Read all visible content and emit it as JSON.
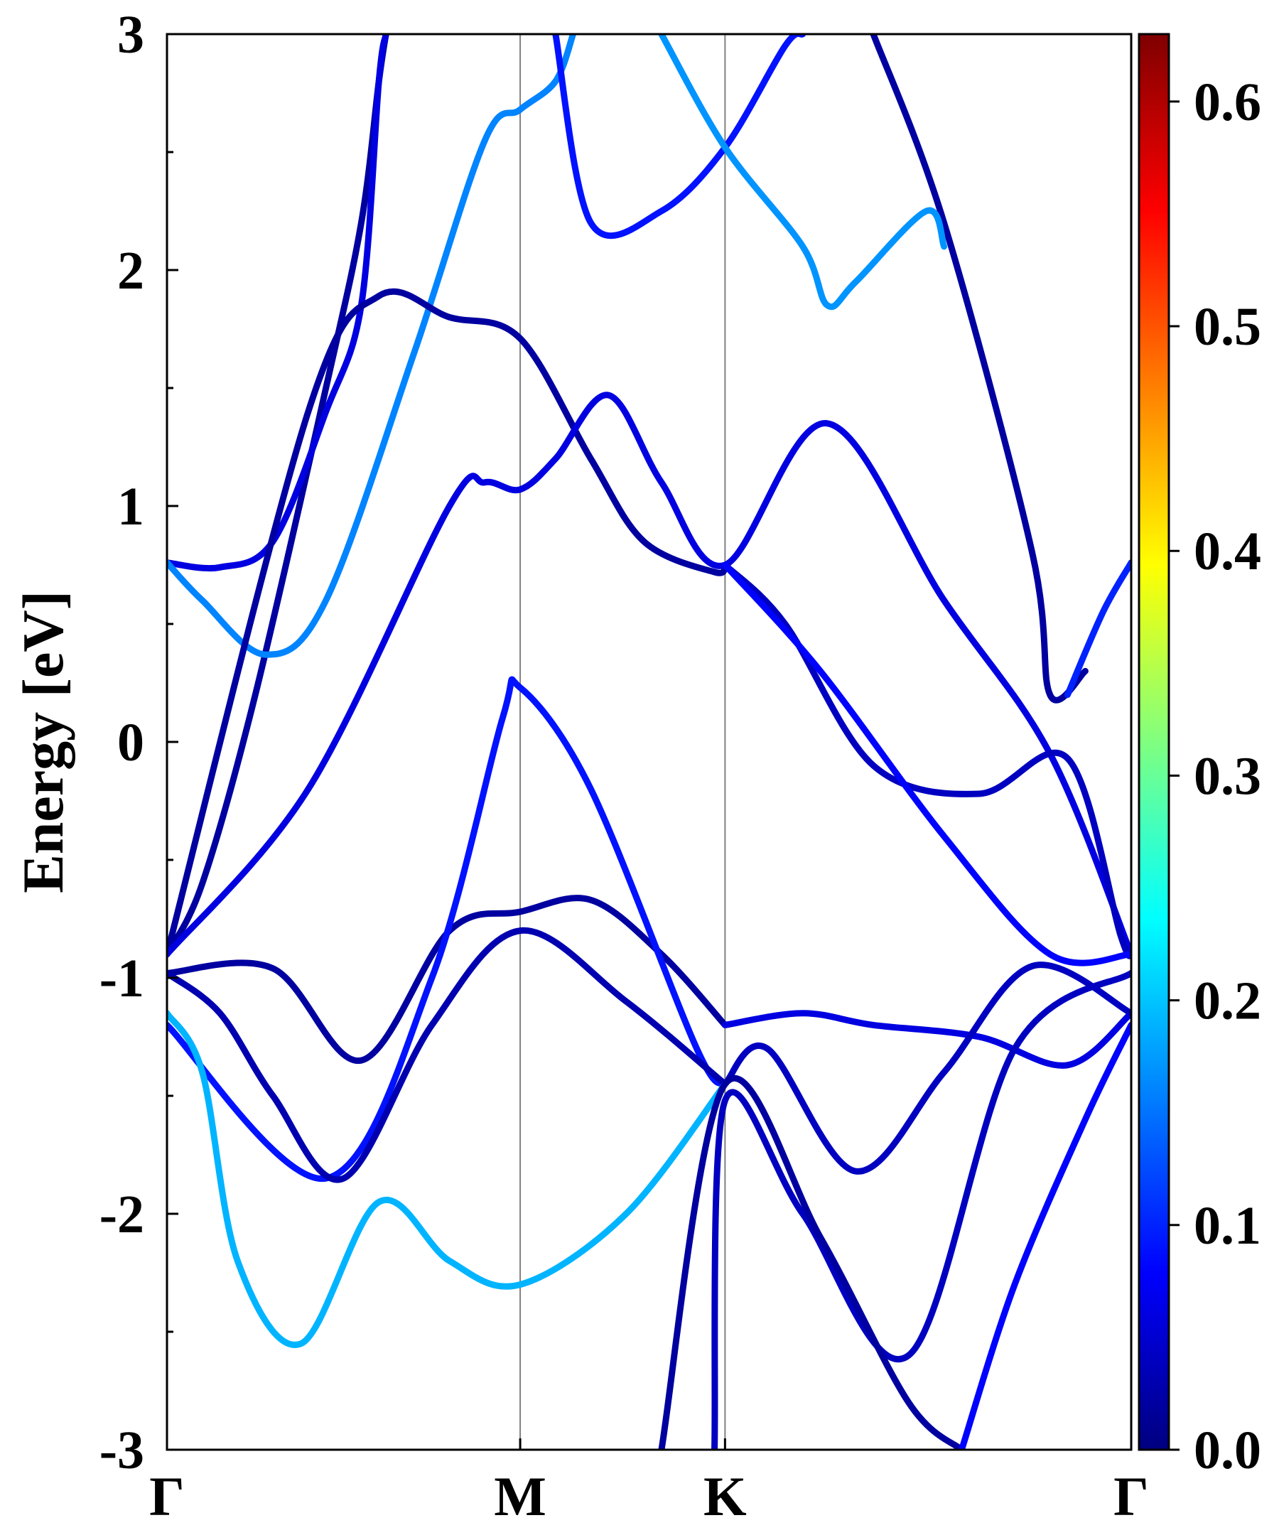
{
  "chart_data": {
    "type": "line",
    "title": "",
    "xlabel": "",
    "ylabel": "Energy [eV]",
    "ylim": [
      -3,
      3
    ],
    "y_ticks": [
      "-3",
      "-2",
      "-1",
      "0",
      "1",
      "2",
      "3"
    ],
    "y_tick_values": [
      -3,
      -2,
      -1,
      0,
      1,
      2,
      3
    ],
    "k_path_ticks": [
      "Γ",
      "M",
      "K",
      "Γ"
    ],
    "k_path_positions": [
      0,
      1,
      1.58,
      2.73
    ],
    "colorbar": {
      "colormap": "jet",
      "range": [
        0,
        0.63
      ],
      "ticks": [
        "0.0",
        "0.1",
        "0.2",
        "0.3",
        "0.4",
        "0.5",
        "0.6"
      ],
      "tick_values": [
        0.0,
        0.1,
        0.2,
        0.3,
        0.4,
        0.5,
        0.6
      ]
    },
    "series": [
      {
        "weight": 0.02,
        "x": [
          0,
          0.1,
          0.25,
          0.45,
          0.55,
          0.6,
          0.62
        ],
        "y": [
          -0.9,
          -0.6,
          0.2,
          1.5,
          2.2,
          2.8,
          3.0
        ]
      },
      {
        "weight": 0.06,
        "x": [
          0,
          0.15,
          0.3,
          0.45,
          0.55,
          0.6,
          0.62
        ],
        "y": [
          0.76,
          0.74,
          0.85,
          1.4,
          1.85,
          2.8,
          3.0
        ]
      },
      {
        "weight": 0.16,
        "x": [
          0,
          0.1,
          0.28,
          0.45,
          0.7,
          0.9,
          1.0,
          1.1,
          1.15
        ],
        "y": [
          0.76,
          0.6,
          0.37,
          0.6,
          1.65,
          2.55,
          2.68,
          2.8,
          3.0
        ]
      },
      {
        "weight": 0.02,
        "x": [
          0,
          0.4,
          0.6,
          0.8,
          1.0,
          1.2,
          1.35,
          1.55,
          1.58
        ],
        "y": [
          -0.9,
          1.4,
          1.89,
          1.8,
          1.71,
          1.2,
          0.85,
          0.72,
          0.75
        ]
      },
      {
        "weight": 0.06,
        "x": [
          0,
          0.4,
          0.8,
          0.9,
          1.0,
          1.1,
          1.25,
          1.4,
          1.58,
          1.87,
          2.2,
          2.5,
          2.73
        ],
        "y": [
          -0.9,
          -0.2,
          1.0,
          1.1,
          1.07,
          1.2,
          1.47,
          1.1,
          0.75,
          1.35,
          0.6,
          -0.05,
          -0.9
        ]
      },
      {
        "weight": 0.04,
        "x": [
          1.58,
          1.75,
          2.0,
          2.3,
          2.55,
          2.7,
          2.73
        ],
        "y": [
          0.75,
          0.5,
          -0.1,
          -0.22,
          -0.07,
          -0.82,
          -0.9
        ]
      },
      {
        "weight": 0.08,
        "x": [
          1.58,
          1.85,
          2.2,
          2.5,
          2.73
        ],
        "y": [
          0.75,
          0.3,
          -0.4,
          -0.9,
          -0.9
        ]
      },
      {
        "weight": 0.02,
        "x": [
          0,
          0.3,
          0.55,
          0.8,
          1.0,
          1.2,
          1.4,
          1.58
        ],
        "y": [
          -0.98,
          -0.96,
          -1.35,
          -0.8,
          -0.72,
          -0.67,
          -0.9,
          -1.2
        ]
      },
      {
        "weight": 0.09,
        "x": [
          0,
          0.45,
          0.75,
          0.95,
          1.0,
          1.2,
          1.5,
          1.58
        ],
        "y": [
          -1.2,
          -1.85,
          -1.0,
          0.1,
          0.23,
          -0.2,
          -1.3,
          -1.45
        ]
      },
      {
        "weight": 0.03,
        "x": [
          0,
          0.15,
          0.3,
          0.5,
          0.75,
          1.0,
          1.3,
          1.58
        ],
        "y": [
          -0.98,
          -1.15,
          -1.5,
          -1.85,
          -1.2,
          -0.8,
          -1.1,
          -1.45
        ]
      },
      {
        "weight": 0.19,
        "x": [
          0,
          0.1,
          0.2,
          0.38,
          0.6,
          0.8,
          1.0,
          1.3,
          1.58
        ],
        "y": [
          -1.15,
          -1.4,
          -2.2,
          -2.55,
          -1.95,
          -2.2,
          -2.3,
          -2.0,
          -1.45
        ]
      },
      {
        "weight": 0.06,
        "x": [
          1.58,
          1.8,
          2.0,
          2.3,
          2.55,
          2.73
        ],
        "y": [
          -1.2,
          -1.15,
          -1.2,
          -1.25,
          -1.37,
          -1.15
        ]
      },
      {
        "weight": 0.04,
        "x": [
          1.58,
          1.7,
          1.95,
          2.2,
          2.45,
          2.73
        ],
        "y": [
          -1.45,
          -1.3,
          -1.82,
          -1.4,
          -0.95,
          -1.15
        ]
      },
      {
        "weight": 0.04,
        "x": [
          1.55,
          1.58,
          1.8,
          2.1,
          2.4,
          2.73
        ],
        "y": [
          -3.0,
          -1.52,
          -2.0,
          -2.6,
          -1.3,
          -0.98
        ]
      },
      {
        "weight": 0.02,
        "x": [
          1.4,
          1.58,
          1.85,
          2.1,
          2.25
        ],
        "y": [
          -3.0,
          -1.45,
          -2.1,
          -2.8,
          -3.0
        ]
      },
      {
        "weight": 0.08,
        "x": [
          2.25,
          2.4,
          2.6,
          2.73
        ],
        "y": [
          -3.0,
          -2.3,
          -1.6,
          -1.2
        ]
      },
      {
        "weight": 0.02,
        "x": [
          2.0,
          2.2,
          2.45,
          2.5,
          2.6
        ],
        "y": [
          3.0,
          2.2,
          0.8,
          0.2,
          0.3
        ]
      },
      {
        "weight": 0.09,
        "x": [
          1.1,
          1.2,
          1.4,
          1.58,
          1.75,
          1.8
        ],
        "y": [
          3.0,
          2.2,
          2.25,
          2.52,
          2.95,
          3.0
        ]
      },
      {
        "weight": 0.17,
        "x": [
          1.4,
          1.58,
          1.8,
          1.87,
          1.95,
          2.15,
          2.2
        ],
        "y": [
          3.0,
          2.52,
          2.1,
          1.85,
          1.95,
          2.25,
          2.1
        ]
      },
      {
        "weight": 0.1,
        "x": [
          2.55,
          2.65,
          2.73
        ],
        "y": [
          0.2,
          0.55,
          0.76
        ]
      }
    ]
  }
}
